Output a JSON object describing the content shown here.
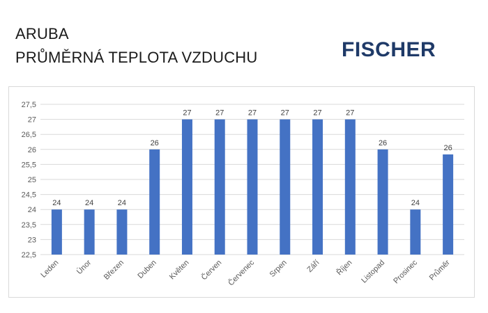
{
  "header": {
    "title_line1": "ARUBA",
    "title_line2": "PRŮMĚRNÁ TEPLOTA VZDUCHU",
    "logo_text": "FISCHER",
    "logo_color": "#1f3a68"
  },
  "chart_data": {
    "type": "bar",
    "title": "ARUBA – PRŮMĚRNÁ TEPLOTA VZDUCHU",
    "xlabel": "",
    "ylabel": "",
    "categories": [
      "Leden",
      "Únor",
      "Březen",
      "Duben",
      "Květen",
      "Červen",
      "Červenec",
      "Srpen",
      "Září",
      "Říjen",
      "Listopad",
      "Prosinec",
      "Průměr"
    ],
    "values": [
      24,
      24,
      24,
      26,
      27,
      27,
      27,
      27,
      27,
      27,
      26,
      24,
      25.833
    ],
    "data_labels": [
      "24",
      "24",
      "24",
      "26",
      "27",
      "27",
      "27",
      "27",
      "27",
      "27",
      "26",
      "24",
      "26"
    ],
    "ylim": [
      22.5,
      27.5
    ],
    "yticks": [
      "22,5",
      "23",
      "23,5",
      "24",
      "24,5",
      "25",
      "25,5",
      "26",
      "26,5",
      "27",
      "27,5"
    ],
    "ytick_values": [
      22.5,
      23,
      23.5,
      24,
      24.5,
      25,
      25.5,
      26,
      26.5,
      27,
      27.5
    ],
    "grid": true,
    "legend": "none",
    "bar_color": "#4472c4",
    "grid_color": "#d9d9d9"
  }
}
